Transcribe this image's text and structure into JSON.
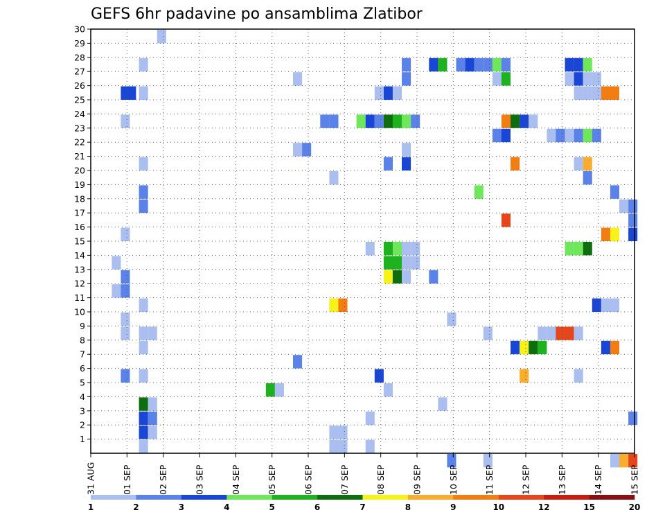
{
  "chart_data": {
    "type": "heatmap",
    "title": "GEFS 6hr padavine po ansamblima Zlatibor",
    "xlabel": "",
    "ylabel": "",
    "x_tick_labels": [
      "31 AUG",
      "01 SEP",
      "02 SEP",
      "03 SEP",
      "04 SEP",
      "05 SEP",
      "06 SEP",
      "07 SEP",
      "08 SEP",
      "09 SEP",
      "10 SEP",
      "11 SEP",
      "12 SEP",
      "13 SEP",
      "14 SEP",
      "15 SEP"
    ],
    "y_tick_labels": [
      "1",
      "2",
      "3",
      "4",
      "5",
      "6",
      "7",
      "8",
      "9",
      "10",
      "11",
      "12",
      "13",
      "14",
      "15",
      "16",
      "17",
      "18",
      "19",
      "20",
      "21",
      "22",
      "23",
      "24",
      "25",
      "26",
      "27",
      "28",
      "29",
      "30"
    ],
    "xlim_days": [
      0,
      15
    ],
    "ylim": [
      0,
      30
    ],
    "grid": true,
    "colorbar": {
      "labels": [
        "1",
        "2",
        "3",
        "4",
        "5",
        "6",
        "7",
        "8",
        "9",
        "10",
        "12",
        "15",
        "20"
      ],
      "colors": [
        "#aabfef",
        "#5a82e8",
        "#1a46d6",
        "#6ee85a",
        "#1fb21f",
        "#0e6e0e",
        "#f7f21a",
        "#f8ad2f",
        "#f27d12",
        "#e6461c",
        "#c81e12",
        "#861013"
      ]
    },
    "cells": [
      {
        "x": 0.83,
        "y": 25,
        "v": 3
      },
      {
        "x": 1.0,
        "y": 25,
        "v": 3
      },
      {
        "x": 1.83,
        "y": 29,
        "v": 1
      },
      {
        "x": 1.33,
        "y": 27,
        "v": 1
      },
      {
        "x": 1.33,
        "y": 25,
        "v": 1
      },
      {
        "x": 1.33,
        "y": 20,
        "v": 1
      },
      {
        "x": 1.33,
        "y": 18,
        "v": 2
      },
      {
        "x": 1.33,
        "y": 17,
        "v": 2
      },
      {
        "x": 1.33,
        "y": 10,
        "v": 1
      },
      {
        "x": 1.33,
        "y": 8,
        "v": 1
      },
      {
        "x": 1.58,
        "y": 8,
        "v": 1
      },
      {
        "x": 1.33,
        "y": 7,
        "v": 1
      },
      {
        "x": 1.33,
        "y": 5,
        "v": 1
      },
      {
        "x": 1.33,
        "y": 3,
        "v": 6
      },
      {
        "x": 1.58,
        "y": 3,
        "v": 1
      },
      {
        "x": 1.33,
        "y": 2,
        "v": 3
      },
      {
        "x": 1.58,
        "y": 2,
        "v": 2
      },
      {
        "x": 1.33,
        "y": 1,
        "v": 3
      },
      {
        "x": 1.58,
        "y": 1,
        "v": 1
      },
      {
        "x": 1.33,
        "y": 0,
        "v": 1
      },
      {
        "x": 0.83,
        "y": 23,
        "v": 1
      },
      {
        "x": 0.83,
        "y": 15,
        "v": 1
      },
      {
        "x": 0.58,
        "y": 13,
        "v": 1
      },
      {
        "x": 0.83,
        "y": 12,
        "v": 2
      },
      {
        "x": 0.58,
        "y": 11,
        "v": 1
      },
      {
        "x": 0.83,
        "y": 11,
        "v": 2
      },
      {
        "x": 0.83,
        "y": 9,
        "v": 1
      },
      {
        "x": 0.83,
        "y": 8,
        "v": 1
      },
      {
        "x": 0.83,
        "y": 5,
        "v": 2
      },
      {
        "x": 4.83,
        "y": 4,
        "v": 5
      },
      {
        "x": 5.08,
        "y": 4,
        "v": 1
      },
      {
        "x": 5.58,
        "y": 26,
        "v": 1
      },
      {
        "x": 5.58,
        "y": 21,
        "v": 1
      },
      {
        "x": 5.83,
        "y": 21,
        "v": 2
      },
      {
        "x": 5.58,
        "y": 6,
        "v": 2
      },
      {
        "x": 6.33,
        "y": 23,
        "v": 2
      },
      {
        "x": 6.58,
        "y": 23,
        "v": 2
      },
      {
        "x": 6.58,
        "y": 19,
        "v": 1
      },
      {
        "x": 6.58,
        "y": 10,
        "v": 7
      },
      {
        "x": 6.83,
        "y": 10,
        "v": 9
      },
      {
        "x": 6.58,
        "y": 1,
        "v": 1
      },
      {
        "x": 6.83,
        "y": 1,
        "v": 1
      },
      {
        "x": 6.58,
        "y": 0,
        "v": 1
      },
      {
        "x": 6.83,
        "y": 0,
        "v": 1
      },
      {
        "x": 7.33,
        "y": 23,
        "v": 4
      },
      {
        "x": 7.58,
        "y": 23,
        "v": 3
      },
      {
        "x": 7.83,
        "y": 23,
        "v": 2
      },
      {
        "x": 8.08,
        "y": 23,
        "v": 6
      },
      {
        "x": 8.33,
        "y": 23,
        "v": 5
      },
      {
        "x": 8.58,
        "y": 23,
        "v": 4
      },
      {
        "x": 8.83,
        "y": 23,
        "v": 2
      },
      {
        "x": 7.83,
        "y": 25,
        "v": 1
      },
      {
        "x": 8.08,
        "y": 25,
        "v": 3
      },
      {
        "x": 8.33,
        "y": 25,
        "v": 1
      },
      {
        "x": 8.58,
        "y": 27,
        "v": 2
      },
      {
        "x": 8.58,
        "y": 26,
        "v": 2
      },
      {
        "x": 8.58,
        "y": 21,
        "v": 1
      },
      {
        "x": 8.08,
        "y": 20,
        "v": 2
      },
      {
        "x": 8.58,
        "y": 20,
        "v": 3
      },
      {
        "x": 7.58,
        "y": 14,
        "v": 1
      },
      {
        "x": 8.08,
        "y": 14,
        "v": 5
      },
      {
        "x": 8.33,
        "y": 14,
        "v": 4
      },
      {
        "x": 8.58,
        "y": 14,
        "v": 1
      },
      {
        "x": 8.83,
        "y": 14,
        "v": 1
      },
      {
        "x": 8.08,
        "y": 13,
        "v": 5
      },
      {
        "x": 8.33,
        "y": 13,
        "v": 5
      },
      {
        "x": 8.58,
        "y": 13,
        "v": 1
      },
      {
        "x": 8.83,
        "y": 13,
        "v": 1
      },
      {
        "x": 8.08,
        "y": 12,
        "v": 7
      },
      {
        "x": 8.33,
        "y": 12,
        "v": 6
      },
      {
        "x": 8.58,
        "y": 12,
        "v": 1
      },
      {
        "x": 9.33,
        "y": 12,
        "v": 2
      },
      {
        "x": 7.83,
        "y": 5,
        "v": 3
      },
      {
        "x": 8.08,
        "y": 4,
        "v": 1
      },
      {
        "x": 7.58,
        "y": 2,
        "v": 1
      },
      {
        "x": 7.58,
        "y": 0,
        "v": 1
      },
      {
        "x": 9.33,
        "y": 27,
        "v": 3
      },
      {
        "x": 9.58,
        "y": 27,
        "v": 5
      },
      {
        "x": 10.08,
        "y": 27,
        "v": 2
      },
      {
        "x": 10.33,
        "y": 27,
        "v": 3
      },
      {
        "x": 10.58,
        "y": 27,
        "v": 2
      },
      {
        "x": 10.83,
        "y": 27,
        "v": 2
      },
      {
        "x": 11.08,
        "y": 27,
        "v": 4
      },
      {
        "x": 11.33,
        "y": 27,
        "v": 2
      },
      {
        "x": 11.08,
        "y": 26,
        "v": 1
      },
      {
        "x": 11.33,
        "y": 26,
        "v": 5
      },
      {
        "x": 11.33,
        "y": 23,
        "v": 9
      },
      {
        "x": 11.58,
        "y": 23,
        "v": 6
      },
      {
        "x": 11.83,
        "y": 23,
        "v": 3
      },
      {
        "x": 12.08,
        "y": 23,
        "v": 1
      },
      {
        "x": 11.08,
        "y": 22,
        "v": 2
      },
      {
        "x": 11.33,
        "y": 22,
        "v": 3
      },
      {
        "x": 11.58,
        "y": 20,
        "v": 9
      },
      {
        "x": 10.58,
        "y": 18,
        "v": 4
      },
      {
        "x": 11.33,
        "y": 16,
        "v": 10
      },
      {
        "x": 9.83,
        "y": 9,
        "v": 1
      },
      {
        "x": 9.58,
        "y": 3,
        "v": 1
      },
      {
        "x": 9.83,
        "y": -1,
        "v": 2
      },
      {
        "x": 10.83,
        "y": 8,
        "v": 1
      },
      {
        "x": 10.83,
        "y": -1,
        "v": 1
      },
      {
        "x": 12.33,
        "y": 8,
        "v": 1
      },
      {
        "x": 12.58,
        "y": 8,
        "v": 1
      },
      {
        "x": 11.58,
        "y": 7,
        "v": 3
      },
      {
        "x": 11.83,
        "y": 7,
        "v": 7
      },
      {
        "x": 12.08,
        "y": 7,
        "v": 6
      },
      {
        "x": 12.33,
        "y": 7,
        "v": 5
      },
      {
        "x": 11.83,
        "y": 5,
        "v": 8
      },
      {
        "x": 12.58,
        "y": 22,
        "v": 1
      },
      {
        "x": 12.83,
        "y": 22,
        "v": 2
      },
      {
        "x": 13.08,
        "y": 22,
        "v": 1
      },
      {
        "x": 13.33,
        "y": 22,
        "v": 2
      },
      {
        "x": 13.58,
        "y": 22,
        "v": 4
      },
      {
        "x": 13.83,
        "y": 22,
        "v": 2
      },
      {
        "x": 13.08,
        "y": 27,
        "v": 3
      },
      {
        "x": 13.33,
        "y": 27,
        "v": 3
      },
      {
        "x": 13.58,
        "y": 27,
        "v": 4
      },
      {
        "x": 13.08,
        "y": 26,
        "v": 1
      },
      {
        "x": 13.33,
        "y": 26,
        "v": 3
      },
      {
        "x": 13.58,
        "y": 26,
        "v": 1
      },
      {
        "x": 13.83,
        "y": 26,
        "v": 1
      },
      {
        "x": 13.33,
        "y": 25,
        "v": 1
      },
      {
        "x": 13.58,
        "y": 25,
        "v": 1
      },
      {
        "x": 13.83,
        "y": 25,
        "v": 1
      },
      {
        "x": 14.08,
        "y": 25,
        "v": 9
      },
      {
        "x": 14.33,
        "y": 25,
        "v": 9
      },
      {
        "x": 13.33,
        "y": 20,
        "v": 1
      },
      {
        "x": 13.58,
        "y": 20,
        "v": 8
      },
      {
        "x": 13.58,
        "y": 19,
        "v": 2
      },
      {
        "x": 14.33,
        "y": 18,
        "v": 2
      },
      {
        "x": 14.58,
        "y": 17,
        "v": 1
      },
      {
        "x": 14.83,
        "y": 17,
        "v": 2
      },
      {
        "x": 14.08,
        "y": 15,
        "v": 9
      },
      {
        "x": 14.33,
        "y": 15,
        "v": 7
      },
      {
        "x": 14.83,
        "y": 15,
        "v": 3
      },
      {
        "x": 14.83,
        "y": 16,
        "v": 2
      },
      {
        "x": 13.08,
        "y": 14,
        "v": 4
      },
      {
        "x": 13.33,
        "y": 14,
        "v": 4
      },
      {
        "x": 13.58,
        "y": 14,
        "v": 6
      },
      {
        "x": 13.83,
        "y": 10,
        "v": 3
      },
      {
        "x": 14.08,
        "y": 10,
        "v": 1
      },
      {
        "x": 14.33,
        "y": 10,
        "v": 1
      },
      {
        "x": 12.83,
        "y": 8,
        "v": 11
      },
      {
        "x": 13.08,
        "y": 8,
        "v": 11
      },
      {
        "x": 13.33,
        "y": 8,
        "v": 1
      },
      {
        "x": 14.08,
        "y": 7,
        "v": 3
      },
      {
        "x": 14.33,
        "y": 7,
        "v": 9
      },
      {
        "x": 13.33,
        "y": 5,
        "v": 1
      },
      {
        "x": 14.83,
        "y": 2,
        "v": 2
      },
      {
        "x": 14.33,
        "y": -1,
        "v": 1
      },
      {
        "x": 14.58,
        "y": -1,
        "v": 8
      },
      {
        "x": 14.83,
        "y": -1,
        "v": 10
      }
    ]
  }
}
